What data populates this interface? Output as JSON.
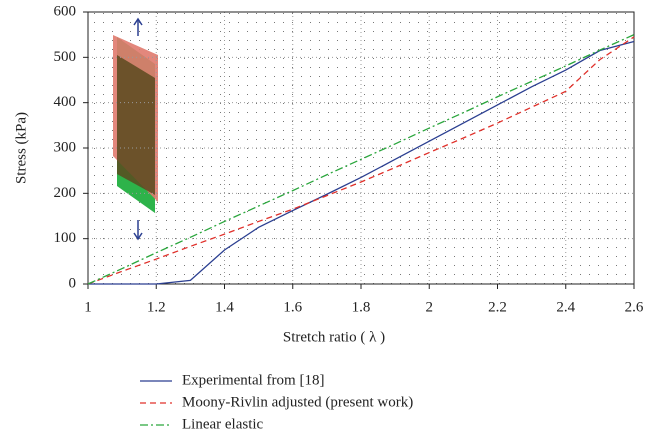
{
  "chart_data": {
    "type": "line",
    "xlabel": "Stretch ratio ( λ )",
    "ylabel": "Stress (kPa)",
    "x": [
      1,
      1.1,
      1.2,
      1.3,
      1.4,
      1.5,
      1.6,
      1.7,
      1.8,
      1.9,
      2,
      2.1,
      2.2,
      2.3,
      2.4,
      2.5,
      2.6
    ],
    "series": [
      {
        "name": "Experimental from [18]",
        "color": "#2b3f91",
        "dash": "none",
        "values": [
          0,
          0,
          0,
          8,
          75,
          125,
          162,
          198,
          235,
          275,
          315,
          355,
          395,
          435,
          472,
          515,
          535
        ]
      },
      {
        "name": "Moony-Rivlin adjusted (present work)",
        "color": "#e0302a",
        "dash": "6 4",
        "values": [
          0,
          28,
          55,
          83,
          110,
          138,
          165,
          195,
          225,
          257,
          290,
          322,
          355,
          390,
          425,
          495,
          545
        ]
      },
      {
        "name": "Linear elastic",
        "color": "#2aa63c",
        "dash": "8 3 2 3",
        "values": [
          0,
          34,
          69,
          103,
          138,
          172,
          206,
          241,
          275,
          309,
          344,
          378,
          413,
          447,
          481,
          516,
          550
        ]
      }
    ],
    "xlim": [
      1,
      2.6
    ],
    "ylim": [
      0,
      600
    ],
    "xticks": [
      1,
      1.2,
      1.4,
      1.6,
      1.8,
      2,
      2.2,
      2.4,
      2.6
    ],
    "yticks": [
      0,
      100,
      200,
      300,
      400,
      500,
      600
    ],
    "grid": true
  }
}
